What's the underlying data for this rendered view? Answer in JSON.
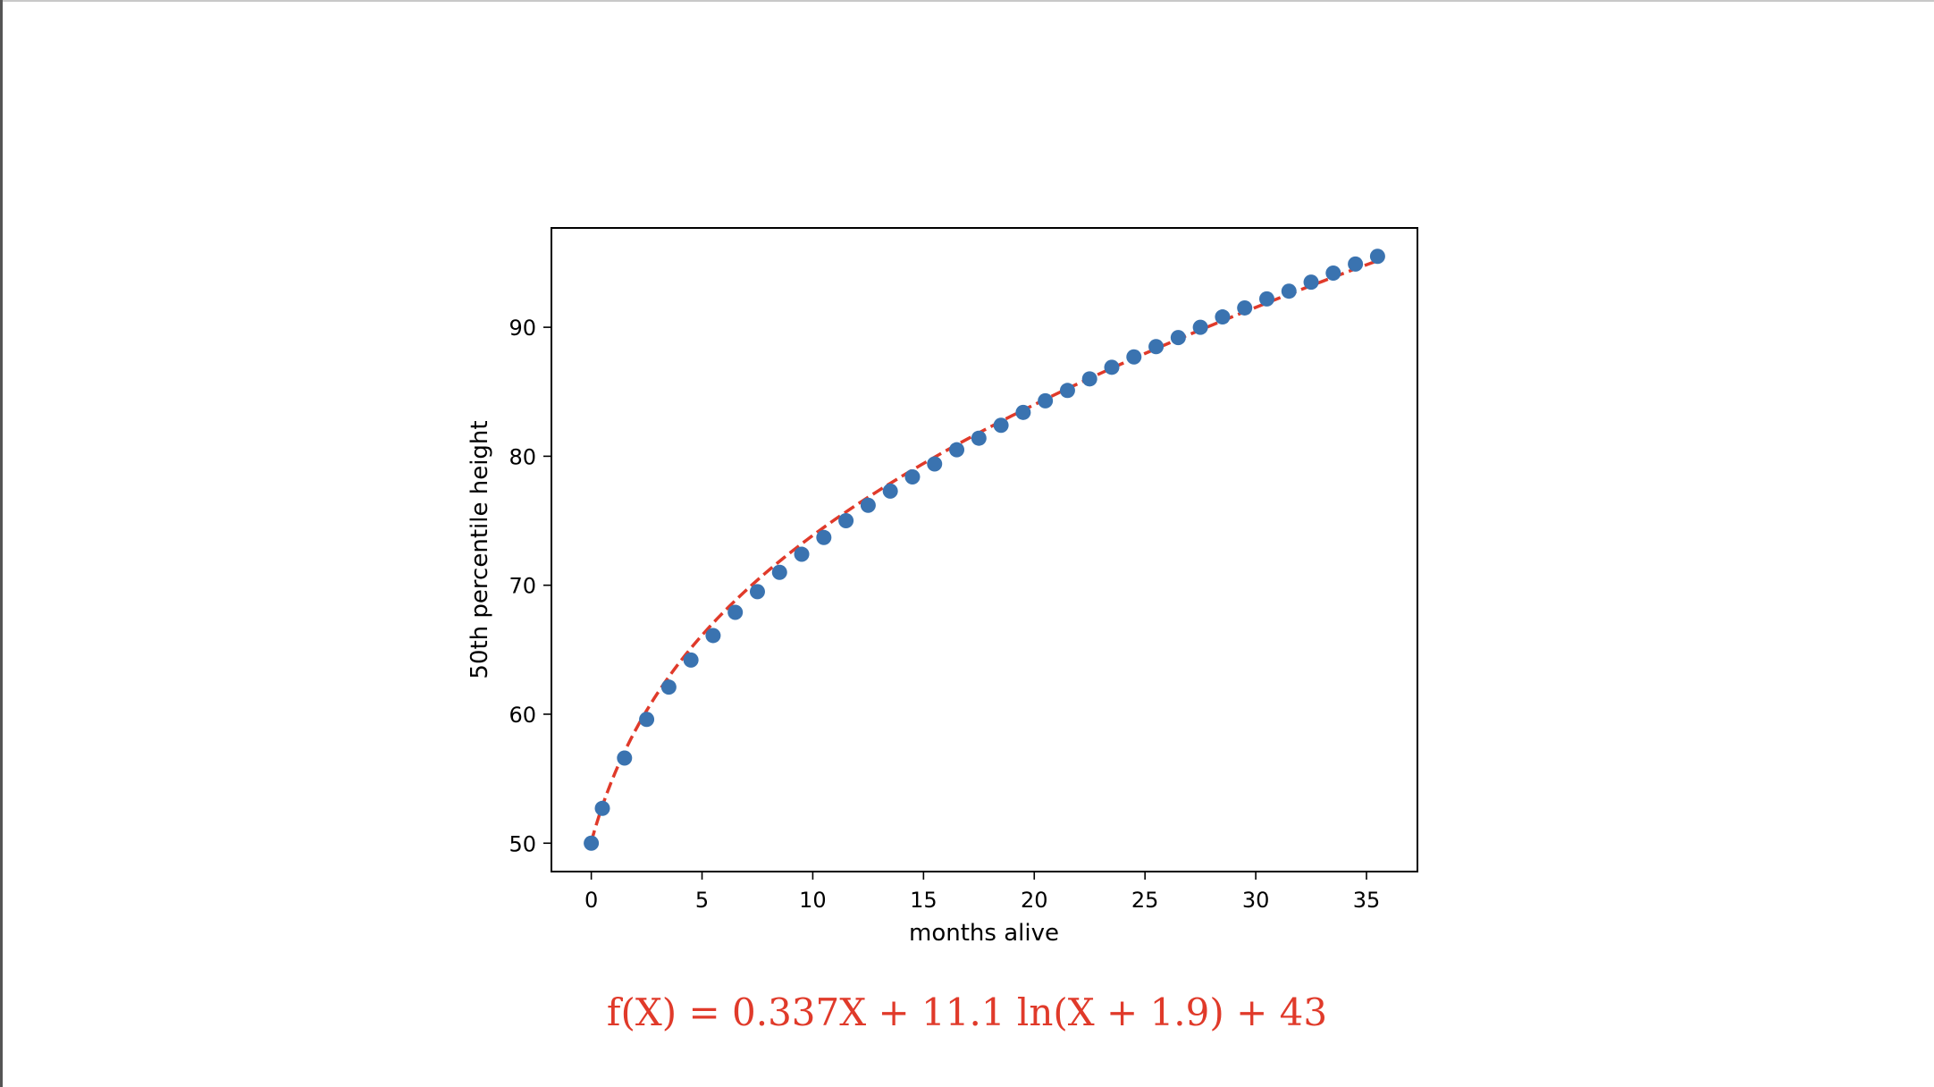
{
  "chart_data": {
    "type": "scatter",
    "xlabel": "months alive",
    "ylabel": "50th percentile height",
    "xlim": [
      -1.8,
      37.3
    ],
    "ylim": [
      47.8,
      97.7
    ],
    "xticks": [
      0,
      5,
      10,
      15,
      20,
      25,
      30,
      35
    ],
    "yticks": [
      50,
      60,
      70,
      80,
      90
    ],
    "grid": false,
    "colors": {
      "points": "#3a73b0",
      "fit": "#e03a2a"
    },
    "series": [
      {
        "x": [
          0,
          0.5,
          1.5,
          2.5,
          3.5,
          4.5,
          5.5,
          6.5,
          7.5,
          8.5,
          9.5,
          10.5,
          11.5,
          12.5,
          13.5,
          14.5,
          15.5,
          16.5,
          17.5,
          18.5,
          19.5,
          20.5,
          21.5,
          22.5,
          23.5,
          24.5,
          25.5,
          26.5,
          27.5,
          28.5,
          29.5,
          30.5,
          31.5,
          32.5,
          33.5,
          34.5,
          35.5
        ],
        "y": [
          50.0,
          52.7,
          56.6,
          59.6,
          62.1,
          64.2,
          66.1,
          67.9,
          69.5,
          71.0,
          72.4,
          73.7,
          75.0,
          76.2,
          77.3,
          78.4,
          79.4,
          80.5,
          81.4,
          82.4,
          83.4,
          84.3,
          85.1,
          86.0,
          86.9,
          87.7,
          88.5,
          89.2,
          90.0,
          90.8,
          91.5,
          92.2,
          92.8,
          93.5,
          94.2,
          94.9,
          95.5
        ]
      }
    ],
    "fit": {
      "a": 0.337,
      "b": 11.1,
      "c": 1.9,
      "d": 43
    }
  },
  "formula": {
    "text": "f(X) = 0.337X + 11.1 ln(X + 1.9) + 43"
  }
}
